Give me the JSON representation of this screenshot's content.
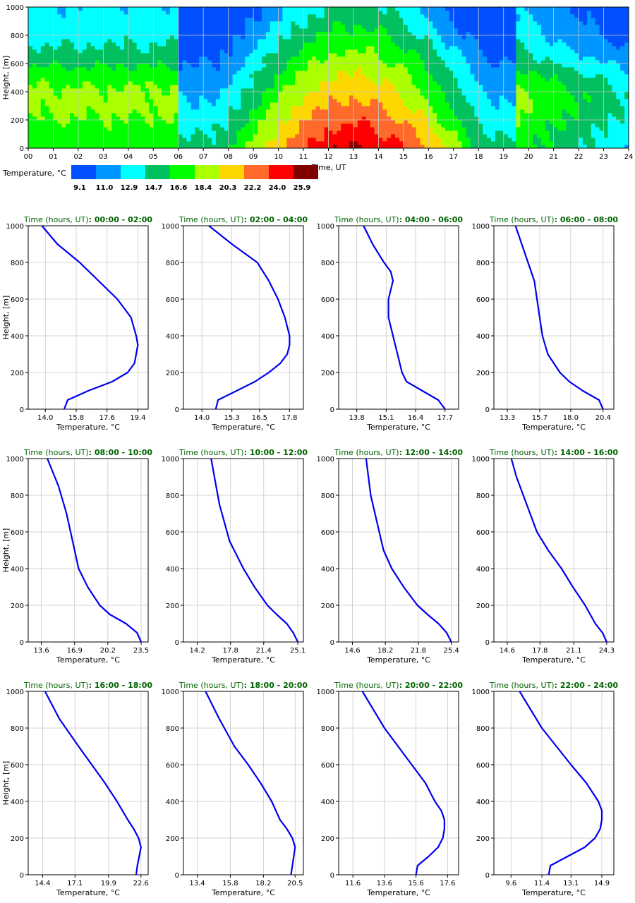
{
  "chart_data": [
    {
      "type": "heatmap",
      "xlabel": "Time, UT",
      "ylabel": "Height, [m]",
      "xlim": [
        0,
        24
      ],
      "ylim": [
        0,
        1000
      ],
      "x_ticks": [
        "00",
        "01",
        "02",
        "03",
        "04",
        "05",
        "06",
        "07",
        "08",
        "09",
        "10",
        "11",
        "12",
        "13",
        "14",
        "15",
        "16",
        "17",
        "18",
        "19",
        "20",
        "21",
        "22",
        "23",
        "24"
      ],
      "y_ticks": [
        "0",
        "200",
        "400",
        "600",
        "800",
        "1000"
      ],
      "colorbar": {
        "label": "Temperature, °C",
        "colors": [
          "#0050ff",
          "#0096ff",
          "#00ffff",
          "#00c060",
          "#00ff00",
          "#aaff00",
          "#ffd700",
          "#ff6a2a",
          "#ff0000",
          "#800000"
        ],
        "tick_labels": [
          "9.1",
          "11.0",
          "12.9",
          "14.7",
          "16.6",
          "18.4",
          "20.3",
          "22.2",
          "24.0",
          "25.9"
        ]
      },
      "grid": true
    },
    {
      "type": "line",
      "title_prefix": "Time (hours, UT)",
      "title_range": ": 00:00 - 02:00",
      "xlabel": "Temperature, °C",
      "ylabel": "Height, [m]",
      "x_ticks": [
        14.0,
        15.8,
        17.6,
        19.4
      ],
      "xlim": [
        13.0,
        20.0
      ],
      "ylim": [
        0,
        1000
      ],
      "y_ticks": [
        "0",
        "200",
        "400",
        "600",
        "800",
        "1000"
      ],
      "series": [
        {
          "x": [
            15.1,
            15.3,
            16.5,
            17.9,
            18.8,
            19.2,
            19.4,
            19.3,
            19.0,
            18.2,
            17.1,
            16.0,
            14.7,
            13.8
          ],
          "y": [
            0,
            50,
            100,
            150,
            200,
            250,
            350,
            400,
            500,
            600,
            700,
            800,
            900,
            1000
          ]
        }
      ]
    },
    {
      "type": "line",
      "title_prefix": "Time (hours, UT)",
      "title_range": ": 02:00 - 04:00",
      "xlabel": "Temperature, °C",
      "ylabel": "",
      "x_ticks": [
        14.0,
        15.3,
        16.5,
        17.8
      ],
      "xlim": [
        13.2,
        18.4
      ],
      "ylim": [
        0,
        1000
      ],
      "y_ticks": [
        "0",
        "200",
        "400",
        "600",
        "800",
        "1000"
      ],
      "series": [
        {
          "x": [
            14.6,
            14.7,
            15.5,
            16.3,
            16.9,
            17.4,
            17.7,
            17.8,
            17.8,
            17.6,
            17.3,
            16.9,
            16.4,
            15.3,
            14.3
          ],
          "y": [
            0,
            50,
            100,
            150,
            200,
            250,
            300,
            350,
            400,
            500,
            600,
            700,
            800,
            900,
            1000
          ]
        }
      ]
    },
    {
      "type": "line",
      "title_prefix": "Time (hours, UT)",
      "title_range": ": 04:00 - 06:00",
      "xlabel": "Temperature, °C",
      "ylabel": "",
      "x_ticks": [
        13.8,
        15.1,
        16.4,
        17.7
      ],
      "xlim": [
        13.0,
        18.3
      ],
      "ylim": [
        0,
        1000
      ],
      "y_ticks": [
        "0",
        "200",
        "400",
        "600",
        "800",
        "1000"
      ],
      "series": [
        {
          "x": [
            17.7,
            17.4,
            16.7,
            16.0,
            15.8,
            15.6,
            15.4,
            15.2,
            15.2,
            15.3,
            15.4,
            15.3,
            15.0,
            14.5,
            14.1
          ],
          "y": [
            0,
            50,
            100,
            150,
            200,
            300,
            400,
            500,
            600,
            650,
            700,
            750,
            800,
            900,
            1000
          ]
        }
      ]
    },
    {
      "type": "line",
      "title_prefix": "Time (hours, UT)",
      "title_range": ": 06:00 - 08:00",
      "xlabel": "Temperature, °C",
      "ylabel": "",
      "x_ticks": [
        13.3,
        15.7,
        18.0,
        20.4
      ],
      "xlim": [
        12.3,
        21.2
      ],
      "ylim": [
        0,
        1000
      ],
      "y_ticks": [
        "0",
        "200",
        "400",
        "600",
        "800",
        "1000"
      ],
      "series": [
        {
          "x": [
            20.4,
            20.1,
            18.9,
            17.9,
            17.2,
            16.3,
            15.9,
            15.7,
            15.3,
            14.6,
            13.9
          ],
          "y": [
            0,
            50,
            100,
            150,
            200,
            300,
            400,
            500,
            700,
            850,
            1000
          ]
        }
      ]
    },
    {
      "type": "line",
      "title_prefix": "Time (hours, UT)",
      "title_range": ": 08:00 - 10:00",
      "xlabel": "Temperature, °C",
      "ylabel": "Height, [m]",
      "x_ticks": [
        13.6,
        16.9,
        20.2,
        23.5
      ],
      "xlim": [
        12.3,
        24.2
      ],
      "ylim": [
        0,
        1000
      ],
      "y_ticks": [
        "0",
        "200",
        "400",
        "600",
        "800",
        "1000"
      ],
      "series": [
        {
          "x": [
            23.5,
            23.1,
            22.0,
            20.4,
            19.4,
            18.2,
            17.3,
            16.7,
            16.1,
            15.3,
            14.2
          ],
          "y": [
            0,
            50,
            100,
            150,
            200,
            300,
            400,
            550,
            700,
            850,
            1000
          ]
        }
      ]
    },
    {
      "type": "line",
      "title_prefix": "Time (hours, UT)",
      "title_range": ": 10:00 - 12:00",
      "xlabel": "Temperature, °C",
      "ylabel": "",
      "x_ticks": [
        14.2,
        17.8,
        21.4,
        25.1
      ],
      "xlim": [
        12.7,
        25.7
      ],
      "ylim": [
        0,
        1000
      ],
      "y_ticks": [
        "0",
        "200",
        "400",
        "600",
        "800",
        "1000"
      ],
      "series": [
        {
          "x": [
            25.1,
            24.6,
            23.9,
            22.8,
            21.8,
            20.4,
            19.2,
            17.7,
            16.6,
            15.7
          ],
          "y": [
            0,
            50,
            100,
            150,
            200,
            300,
            400,
            550,
            750,
            1000
          ]
        }
      ]
    },
    {
      "type": "line",
      "title_prefix": "Time (hours, UT)",
      "title_range": ": 12:00 - 14:00",
      "xlabel": "Temperature, °C",
      "ylabel": "",
      "x_ticks": [
        14.6,
        18.2,
        21.8,
        25.4
      ],
      "xlim": [
        13.1,
        26.2
      ],
      "ylim": [
        0,
        1000
      ],
      "y_ticks": [
        "0",
        "200",
        "400",
        "600",
        "800",
        "1000"
      ],
      "series": [
        {
          "x": [
            25.4,
            24.9,
            24.0,
            22.8,
            21.7,
            20.2,
            18.9,
            18.0,
            17.3,
            16.6,
            16.1
          ],
          "y": [
            0,
            50,
            100,
            150,
            200,
            300,
            400,
            500,
            650,
            800,
            1000
          ]
        }
      ]
    },
    {
      "type": "line",
      "title_prefix": "Time (hours, UT)",
      "title_range": ": 14:00 - 16:00",
      "xlabel": "Temperature, °C",
      "ylabel": "",
      "x_ticks": [
        14.6,
        17.8,
        21.1,
        24.3
      ],
      "xlim": [
        13.3,
        25.0
      ],
      "ylim": [
        0,
        1000
      ],
      "y_ticks": [
        "0",
        "200",
        "400",
        "600",
        "800",
        "1000"
      ],
      "series": [
        {
          "x": [
            24.3,
            23.9,
            23.2,
            22.2,
            21.0,
            19.9,
            18.6,
            17.5,
            16.5,
            15.5,
            15.0
          ],
          "y": [
            0,
            50,
            100,
            200,
            300,
            400,
            500,
            600,
            750,
            900,
            1000
          ]
        }
      ]
    },
    {
      "type": "line",
      "title_prefix": "Time (hours, UT)",
      "title_range": ": 16:00 - 18:00",
      "xlabel": "Temperature, °C",
      "ylabel": "Height, [m]",
      "x_ticks": [
        14.4,
        17.1,
        19.9,
        22.6
      ],
      "xlim": [
        13.2,
        23.2
      ],
      "ylim": [
        0,
        1000
      ],
      "y_ticks": [
        "0",
        "200",
        "400",
        "600",
        "800",
        "1000"
      ],
      "series": [
        {
          "x": [
            22.2,
            22.3,
            22.6,
            22.4,
            22.0,
            21.5,
            20.6,
            19.6,
            18.5,
            17.4,
            15.8,
            14.6
          ],
          "y": [
            0,
            50,
            150,
            200,
            250,
            300,
            400,
            500,
            600,
            700,
            850,
            1000
          ]
        }
      ]
    },
    {
      "type": "line",
      "title_prefix": "Time (hours, UT)",
      "title_range": ": 18:00 - 20:00",
      "xlabel": "Temperature, °C",
      "ylabel": "",
      "x_ticks": [
        13.4,
        15.8,
        18.2,
        20.5
      ],
      "xlim": [
        12.4,
        21.1
      ],
      "ylim": [
        0,
        1000
      ],
      "y_ticks": [
        "0",
        "200",
        "400",
        "600",
        "800",
        "1000"
      ],
      "series": [
        {
          "x": [
            20.2,
            20.3,
            20.5,
            20.3,
            19.9,
            19.4,
            18.8,
            18.0,
            17.1,
            16.1,
            15.0,
            14.0
          ],
          "y": [
            0,
            50,
            150,
            200,
            250,
            300,
            400,
            500,
            600,
            700,
            850,
            1000
          ]
        }
      ]
    },
    {
      "type": "line",
      "title_prefix": "Time (hours, UT)",
      "title_range": ": 20:00 - 22:00",
      "xlabel": "Temperature, °C",
      "ylabel": "",
      "x_ticks": [
        11.6,
        13.6,
        15.6,
        17.6
      ],
      "xlim": [
        10.7,
        18.3
      ],
      "ylim": [
        0,
        1000
      ],
      "y_ticks": [
        "0",
        "200",
        "400",
        "600",
        "800",
        "1000"
      ],
      "series": [
        {
          "x": [
            15.6,
            15.7,
            16.4,
            17.0,
            17.3,
            17.4,
            17.4,
            17.2,
            16.8,
            16.2,
            14.9,
            13.6,
            12.2
          ],
          "y": [
            0,
            50,
            100,
            150,
            200,
            250,
            300,
            350,
            400,
            500,
            650,
            800,
            1000
          ]
        }
      ]
    },
    {
      "type": "line",
      "title_prefix": "Time (hours, UT)",
      "title_range": ": 22:00 - 24:00",
      "xlabel": "Temperature, °C",
      "ylabel": "",
      "x_ticks": [
        9.6,
        11.4,
        13.1,
        14.9
      ],
      "xlim": [
        8.6,
        15.6
      ],
      "ylim": [
        0,
        1000
      ],
      "y_ticks": [
        "0",
        "200",
        "400",
        "600",
        "800",
        "1000"
      ],
      "series": [
        {
          "x": [
            11.8,
            11.9,
            12.9,
            13.9,
            14.5,
            14.8,
            14.9,
            14.9,
            14.7,
            14.0,
            13.1,
            11.4,
            10.1
          ],
          "y": [
            0,
            50,
            100,
            150,
            200,
            250,
            300,
            350,
            400,
            500,
            600,
            800,
            1000
          ]
        }
      ]
    }
  ]
}
